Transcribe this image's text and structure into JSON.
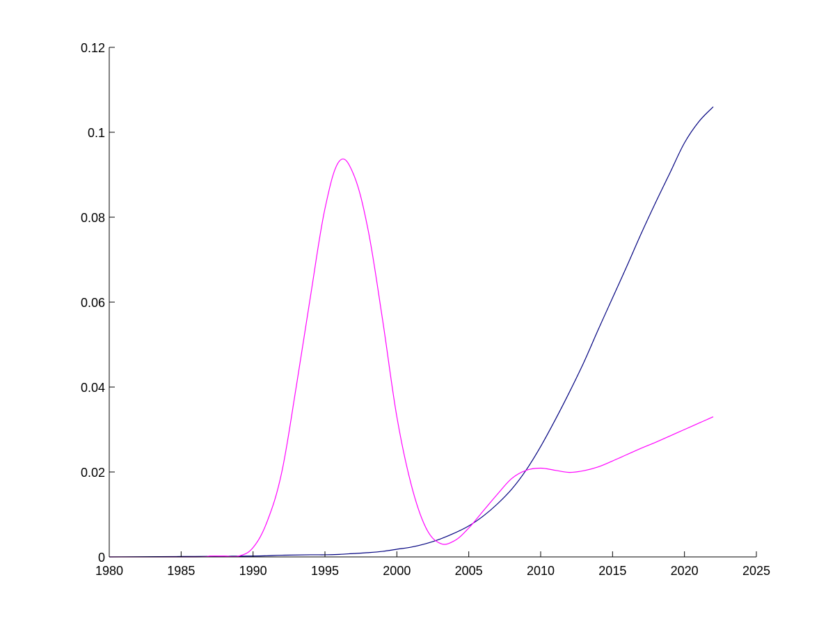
{
  "chart_data": {
    "type": "line",
    "title": "",
    "xlabel": "",
    "ylabel": "",
    "xlim": [
      1980,
      2025
    ],
    "ylim": [
      0,
      0.12
    ],
    "x_ticks": [
      1980,
      1985,
      1990,
      1995,
      2000,
      2005,
      2010,
      2015,
      2020,
      2025
    ],
    "y_ticks": [
      0,
      0.02,
      0.04,
      0.06,
      0.08,
      0.1,
      0.12
    ],
    "x_tick_labels": [
      "1980",
      "1985",
      "1990",
      "1995",
      "2000",
      "2005",
      "2010",
      "2015",
      "2020",
      "2025"
    ],
    "y_tick_labels": [
      "0",
      "0.02",
      "0.04",
      "0.06",
      "0.08",
      "0.1",
      "0.12"
    ],
    "grid": false,
    "legend": null,
    "series": [
      {
        "color": "#00007f",
        "x": [
          1980,
          1985,
          1990,
          1992,
          1994,
          1995,
          1996,
          1997,
          1998,
          1999,
          2000,
          2001,
          2002,
          2003,
          2004,
          2005,
          2006,
          2007,
          2008,
          2009,
          2010,
          2011,
          2012,
          2013,
          2014,
          2015,
          2016,
          2017,
          2018,
          2019,
          2020,
          2021,
          2022
        ],
        "y": [
          0,
          0.0001,
          0.0002,
          0.0004,
          0.0005,
          0.0005,
          0.0006,
          0.0008,
          0.001,
          0.0013,
          0.0018,
          0.0023,
          0.0031,
          0.0042,
          0.0056,
          0.0073,
          0.0096,
          0.0125,
          0.016,
          0.0205,
          0.026,
          0.0322,
          0.0388,
          0.0458,
          0.0535,
          0.061,
          0.0685,
          0.0762,
          0.0835,
          0.0905,
          0.0975,
          0.1025,
          0.106
        ]
      },
      {
        "color": "#ff00ff",
        "x": [
          1980,
          1986,
          1987,
          1988,
          1989,
          1990,
          1991,
          1992,
          1993,
          1994,
          1995,
          1996,
          1997,
          1998,
          1999,
          2000,
          2001,
          2002,
          2003,
          2004,
          2005,
          2006,
          2007,
          2008,
          2009,
          2010,
          2011,
          2012,
          2013,
          2014,
          2015,
          2016,
          2017,
          2018,
          2019,
          2020,
          2021,
          2022
        ],
        "y": [
          0,
          0,
          0.0002,
          0.0002,
          0.0002,
          0.0022,
          0.0085,
          0.02,
          0.04,
          0.0615,
          0.082,
          0.0932,
          0.09,
          0.077,
          0.056,
          0.033,
          0.017,
          0.007,
          0.0032,
          0.0038,
          0.0068,
          0.0108,
          0.0148,
          0.0185,
          0.0204,
          0.0209,
          0.0204,
          0.0199,
          0.0203,
          0.0212,
          0.0226,
          0.0241,
          0.0256,
          0.027,
          0.0285,
          0.03,
          0.0315,
          0.033
        ]
      }
    ]
  }
}
